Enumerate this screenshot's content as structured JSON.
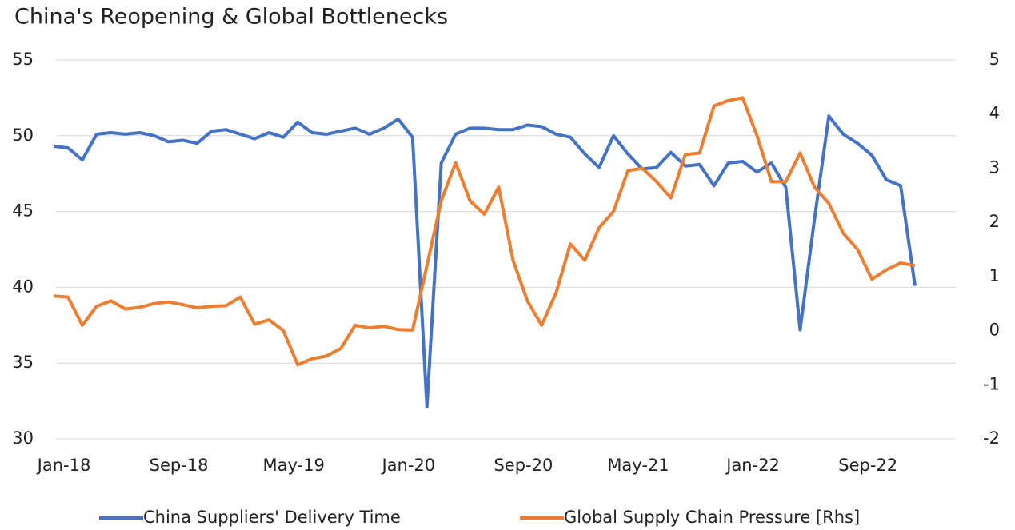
{
  "chart_data": {
    "type": "line",
    "title": "China's Reopening & Global Bottlenecks",
    "categories": [
      "Jan-18",
      null,
      null,
      null,
      null,
      null,
      null,
      null,
      "Sep-18",
      null,
      null,
      null,
      null,
      null,
      null,
      null,
      "May-19",
      null,
      null,
      null,
      null,
      null,
      null,
      null,
      "Jan-20",
      null,
      null,
      null,
      null,
      null,
      null,
      null,
      "Sep-20",
      null,
      null,
      null,
      null,
      null,
      null,
      null,
      "May-21",
      null,
      null,
      null,
      null,
      null,
      null,
      null,
      "Jan-22",
      null,
      null,
      null,
      null,
      null,
      null,
      null,
      "Sep-22",
      null,
      null,
      null,
      null
    ],
    "series": [
      {
        "name": "China Suppliers' Delivery Time",
        "color": "#4472c4",
        "axis": "y",
        "values": [
          49.3,
          49.2,
          48.4,
          50.1,
          50.2,
          50.1,
          50.2,
          50.0,
          49.6,
          49.7,
          49.5,
          50.3,
          50.4,
          50.1,
          49.8,
          50.2,
          49.9,
          50.9,
          50.2,
          50.1,
          50.3,
          50.5,
          50.1,
          50.5,
          51.1,
          49.9,
          32.1,
          48.2,
          50.1,
          50.5,
          50.5,
          50.4,
          50.4,
          50.7,
          50.6,
          50.1,
          49.9,
          48.8,
          47.9,
          50.0,
          48.8,
          47.8,
          47.9,
          48.9,
          48.0,
          48.1,
          46.7,
          48.2,
          48.3,
          47.6,
          48.2,
          46.6,
          37.2,
          44.5,
          51.3,
          50.1,
          49.5,
          48.7,
          47.1,
          46.7,
          40.1
        ]
      },
      {
        "name": "Global Supply Chain Pressure [Rhs]",
        "color": "#ed7d31",
        "axis": "y2",
        "values": [
          0.64,
          0.62,
          0.1,
          0.45,
          0.55,
          0.4,
          0.43,
          0.5,
          0.53,
          0.48,
          0.42,
          0.45,
          0.46,
          0.62,
          0.12,
          0.2,
          0.0,
          -0.63,
          -0.52,
          -0.47,
          -0.33,
          0.1,
          0.05,
          0.08,
          0.02,
          0.01,
          1.2,
          2.4,
          3.1,
          2.4,
          2.15,
          2.65,
          1.3,
          0.55,
          0.1,
          0.7,
          1.6,
          1.3,
          1.9,
          2.2,
          2.95,
          3.0,
          2.75,
          2.45,
          3.25,
          3.28,
          4.15,
          4.25,
          4.3,
          3.6,
          2.75,
          2.75,
          3.28,
          2.65,
          2.35,
          1.8,
          1.5,
          0.95,
          1.12,
          1.25,
          1.2
        ]
      }
    ],
    "ylim": [
      30,
      55
    ],
    "yticks": [
      30,
      35,
      40,
      45,
      50,
      55
    ],
    "y2lim": [
      -2,
      5
    ],
    "y2ticks": [
      -2,
      -1,
      0,
      1,
      2,
      3,
      4,
      5
    ],
    "grid": true,
    "legend": "bottom"
  }
}
